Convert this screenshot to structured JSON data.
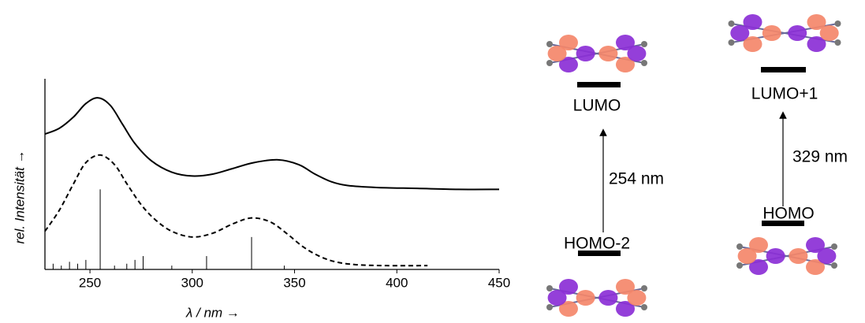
{
  "chart_data": {
    "type": "line",
    "x_label": "λ / nm →",
    "y_label": "rel. Intensität →",
    "xlim": [
      228,
      450
    ],
    "xticks": [
      250,
      300,
      350,
      400,
      450
    ],
    "ylim": [
      0,
      1
    ],
    "series": [
      {
        "color": "#000000",
        "dash": false,
        "x": [
          228,
          235,
          242,
          248,
          254,
          260,
          266,
          272,
          280,
          290,
          300,
          310,
          320,
          330,
          342,
          352,
          360,
          368,
          376,
          390,
          410,
          430,
          450
        ],
        "values": [
          0.71,
          0.74,
          0.8,
          0.87,
          0.9,
          0.86,
          0.76,
          0.66,
          0.57,
          0.51,
          0.49,
          0.5,
          0.53,
          0.56,
          0.575,
          0.55,
          0.5,
          0.46,
          0.44,
          0.43,
          0.425,
          0.42,
          0.42
        ]
      },
      {
        "color": "#000000",
        "dash": true,
        "x": [
          228,
          235,
          242,
          248,
          255,
          262,
          268,
          275,
          282,
          290,
          300,
          310,
          320,
          329,
          338,
          346,
          354,
          362,
          370,
          380,
          395,
          415
        ],
        "values": [
          0.2,
          0.31,
          0.45,
          0.56,
          0.6,
          0.55,
          0.45,
          0.34,
          0.26,
          0.2,
          0.17,
          0.19,
          0.24,
          0.27,
          0.25,
          0.19,
          0.12,
          0.07,
          0.04,
          0.025,
          0.02,
          0.02
        ]
      }
    ],
    "sticks": {
      "color": "#000000",
      "x": [
        232,
        236,
        240,
        244,
        248,
        255,
        262,
        268,
        272,
        276,
        290,
        307,
        329,
        345
      ],
      "values": [
        0.03,
        0.02,
        0.04,
        0.03,
        0.05,
        0.42,
        0.02,
        0.03,
        0.05,
        0.07,
        0.02,
        0.07,
        0.17,
        0.02
      ]
    }
  },
  "orbitals": {
    "lumo": "LUMO",
    "lumo_plus_1": "LUMO+1",
    "homo_minus_2": "HOMO-2",
    "homo": "HOMO",
    "transition_1": "254 nm",
    "transition_2": "329 nm"
  }
}
